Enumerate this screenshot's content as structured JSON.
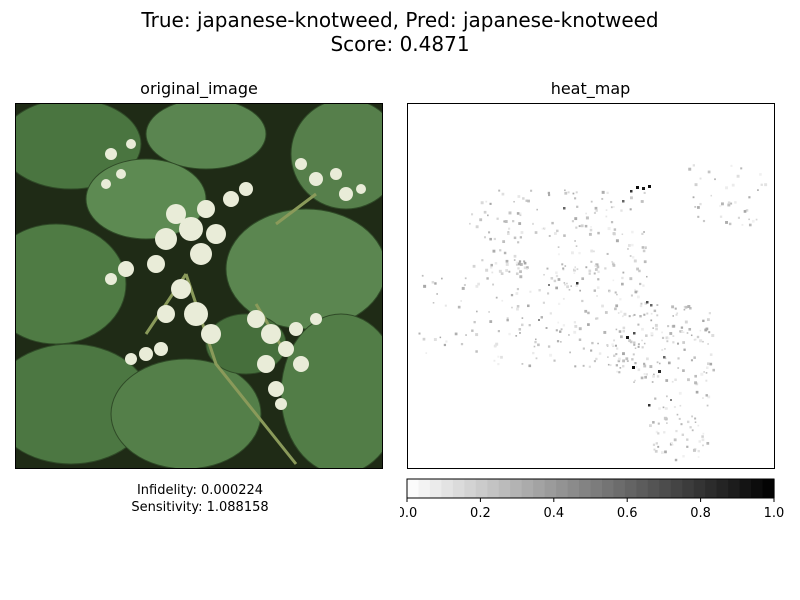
{
  "figure": {
    "title_line1": "True: japanese-knotweed, Pred: japanese-knotweed",
    "title_line2": "Score: 0.4871"
  },
  "left_panel": {
    "title": "original_image",
    "image_subject": "photo of japanese knotweed leaves with white flower clusters",
    "metrics_line1": "Infidelity: 0.000224",
    "metrics_line2": "Sensitivity: 1.088158"
  },
  "right_panel": {
    "title": "heat_map"
  },
  "chart_data": {
    "type": "heatmap",
    "colormap": "Greys",
    "colors": {
      "low": "#ffffff",
      "high": "#000000"
    },
    "colorbar": {
      "orientation": "horizontal",
      "range": [
        0.0,
        1.0
      ],
      "ticks": [
        0.0,
        0.2,
        0.4,
        0.6,
        0.8,
        1.0
      ],
      "tick_labels": [
        "0.0",
        "0.2",
        "0.4",
        "0.6",
        "0.8",
        "1.0"
      ],
      "levels": 32
    },
    "hotspots": [
      {
        "region": "upper-center flower cluster",
        "max_value": 0.95
      },
      {
        "region": "center-right flower cluster",
        "max_value": 0.9
      },
      {
        "region": "lower-right flower cluster",
        "max_value": 0.85
      }
    ]
  }
}
